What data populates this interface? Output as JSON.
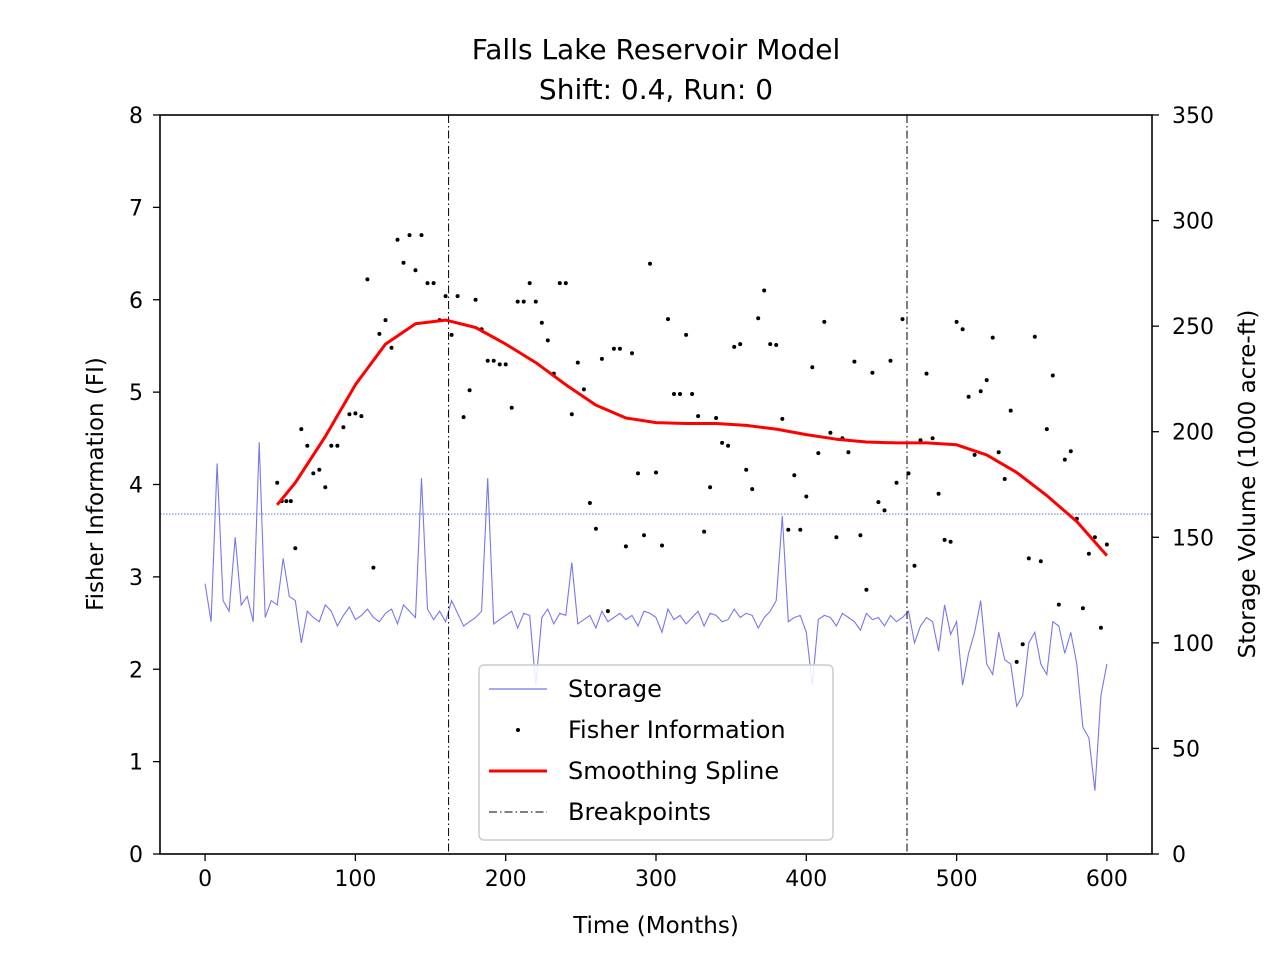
{
  "chart_data": {
    "type": "line",
    "title": "Falls Lake Reservoir Model",
    "subtitle": "Shift: 0.4, Run: 0",
    "xlabel": "Time (Months)",
    "ylabel": "Fisher Information (FI)",
    "y2label": "Storage Volume (1000 acre-ft)",
    "xlim": [
      -30,
      630
    ],
    "ylim": [
      0,
      8
    ],
    "y2lim": [
      0,
      350
    ],
    "xticks": [
      0,
      100,
      200,
      300,
      400,
      500,
      600
    ],
    "yticks": [
      0,
      1,
      2,
      3,
      4,
      5,
      6,
      7,
      8
    ],
    "y2ticks": [
      0,
      50,
      100,
      150,
      200,
      250,
      300,
      350
    ],
    "grid": false,
    "legend_position": "bottom-center",
    "breakpoints": [
      162,
      467
    ],
    "reference_line_y2": 161,
    "colors": {
      "storage": "#7777ee",
      "fisher": "#000000",
      "spline": "#ff0000",
      "breakpoints": "#000000",
      "reference": "#4466bb"
    },
    "series": [
      {
        "name": "Storage",
        "axis": "right",
        "style": "thin-line",
        "x": [
          0,
          4,
          8,
          12,
          16,
          20,
          24,
          28,
          32,
          36,
          40,
          44,
          48,
          52,
          56,
          60,
          64,
          68,
          72,
          76,
          80,
          84,
          88,
          92,
          96,
          100,
          104,
          108,
          112,
          116,
          120,
          124,
          128,
          132,
          136,
          140,
          144,
          148,
          152,
          156,
          160,
          164,
          168,
          172,
          176,
          180,
          184,
          188,
          192,
          196,
          200,
          204,
          208,
          212,
          216,
          220,
          224,
          228,
          232,
          236,
          240,
          244,
          248,
          252,
          256,
          260,
          264,
          268,
          272,
          276,
          280,
          284,
          288,
          292,
          296,
          300,
          304,
          308,
          312,
          316,
          320,
          324,
          328,
          332,
          336,
          340,
          344,
          348,
          352,
          356,
          360,
          364,
          368,
          372,
          376,
          380,
          384,
          388,
          392,
          396,
          400,
          404,
          408,
          412,
          416,
          420,
          424,
          428,
          432,
          436,
          440,
          444,
          448,
          452,
          456,
          460,
          464,
          468,
          472,
          476,
          480,
          484,
          488,
          492,
          496,
          500,
          504,
          508,
          512,
          516,
          520,
          524,
          528,
          532,
          536,
          540,
          544,
          548,
          552,
          556,
          560,
          564,
          568,
          572,
          576,
          580,
          584,
          588,
          592,
          596,
          600
        ],
        "values": [
          128,
          110,
          185,
          120,
          115,
          150,
          118,
          122,
          110,
          195,
          112,
          120,
          118,
          140,
          122,
          120,
          100,
          115,
          112,
          110,
          118,
          115,
          108,
          113,
          117,
          111,
          113,
          116,
          112,
          110,
          114,
          116,
          109,
          118,
          115,
          112,
          178,
          116,
          111,
          115,
          110,
          120,
          114,
          108,
          110,
          112,
          115,
          178,
          109,
          111,
          113,
          115,
          107,
          114,
          113,
          80,
          112,
          116,
          109,
          114,
          113,
          138,
          109,
          111,
          113,
          107,
          115,
          110,
          112,
          114,
          111,
          113,
          108,
          115,
          114,
          112,
          105,
          116,
          111,
          113,
          109,
          112,
          115,
          108,
          114,
          113,
          110,
          111,
          116,
          112,
          114,
          113,
          107,
          112,
          115,
          120,
          160,
          110,
          112,
          113,
          105,
          80,
          111,
          113,
          112,
          108,
          114,
          112,
          110,
          106,
          114,
          111,
          112,
          108,
          113,
          110,
          112,
          115,
          100,
          108,
          112,
          110,
          96,
          118,
          104,
          110,
          80,
          95,
          105,
          120,
          90,
          85,
          105,
          92,
          90,
          70,
          75,
          100,
          105,
          90,
          85,
          110,
          108,
          95,
          105,
          90,
          60,
          55,
          30,
          75,
          90
        ]
      },
      {
        "name": "Fisher Information",
        "axis": "left",
        "style": "points",
        "x": [
          48,
          51,
          54,
          57,
          60,
          64,
          68,
          72,
          76,
          80,
          84,
          88,
          92,
          96,
          100,
          104,
          108,
          112,
          116,
          120,
          124,
          128,
          132,
          136,
          140,
          144,
          148,
          152,
          156,
          160,
          164,
          168,
          172,
          176,
          180,
          184,
          188,
          192,
          196,
          200,
          204,
          208,
          212,
          216,
          220,
          224,
          228,
          232,
          236,
          240,
          244,
          248,
          252,
          256,
          260,
          264,
          268,
          272,
          276,
          280,
          284,
          288,
          292,
          296,
          300,
          304,
          308,
          312,
          316,
          320,
          324,
          328,
          332,
          336,
          340,
          344,
          348,
          352,
          356,
          360,
          364,
          368,
          372,
          376,
          380,
          384,
          388,
          392,
          396,
          400,
          404,
          408,
          412,
          416,
          420,
          424,
          428,
          432,
          436,
          440,
          444,
          448,
          452,
          456,
          460,
          464,
          468,
          472,
          476,
          480,
          484,
          488,
          492,
          496,
          500,
          504,
          508,
          512,
          516,
          520,
          524,
          528,
          532,
          536,
          540,
          544,
          548,
          552,
          556,
          560,
          564,
          568,
          572,
          576,
          580,
          584,
          588,
          592,
          596,
          600
        ],
        "values": [
          4.02,
          3.82,
          3.82,
          3.82,
          3.31,
          4.6,
          4.42,
          4.12,
          4.16,
          3.97,
          4.42,
          4.42,
          4.62,
          4.76,
          4.77,
          4.74,
          6.22,
          3.1,
          5.63,
          5.78,
          5.48,
          6.65,
          6.4,
          6.7,
          6.32,
          6.7,
          6.18,
          6.18,
          5.78,
          6.04,
          5.62,
          6.04,
          4.73,
          5.02,
          6.0,
          5.68,
          5.34,
          5.34,
          5.3,
          5.3,
          4.83,
          5.98,
          5.98,
          6.18,
          5.98,
          5.75,
          5.56,
          5.2,
          6.18,
          6.18,
          4.76,
          5.32,
          5.03,
          3.8,
          3.52,
          5.36,
          2.63,
          5.47,
          5.47,
          3.33,
          5.42,
          4.12,
          3.45,
          6.39,
          4.13,
          3.34,
          5.79,
          4.98,
          4.98,
          5.62,
          4.98,
          4.74,
          3.49,
          3.97,
          4.72,
          4.45,
          4.42,
          5.49,
          5.52,
          4.16,
          3.95,
          5.8,
          6.1,
          5.52,
          5.51,
          4.71,
          3.51,
          4.1,
          3.51,
          3.87,
          5.27,
          4.34,
          5.76,
          4.56,
          3.43,
          4.5,
          4.35,
          5.33,
          3.45,
          2.86,
          5.21,
          3.81,
          3.72,
          5.34,
          4.02,
          5.79,
          4.12,
          3.12,
          4.48,
          5.2,
          4.5,
          3.9,
          3.4,
          3.38,
          5.76,
          5.68,
          4.95,
          4.32,
          5.01,
          5.13,
          5.59,
          4.35,
          4.06,
          4.8,
          2.08,
          2.27,
          3.2,
          5.6,
          3.17,
          4.6,
          5.18,
          2.7,
          4.27,
          4.36,
          3.63,
          2.66,
          3.25,
          3.43,
          2.45,
          3.35
        ]
      },
      {
        "name": "Smoothing Spline",
        "axis": "left",
        "style": "thick-line",
        "x": [
          48,
          60,
          80,
          100,
          120,
          140,
          160,
          180,
          200,
          220,
          240,
          260,
          280,
          300,
          320,
          340,
          360,
          380,
          400,
          420,
          440,
          460,
          480,
          500,
          520,
          540,
          560,
          580,
          600
        ],
        "values": [
          3.78,
          4.02,
          4.52,
          5.08,
          5.52,
          5.74,
          5.78,
          5.7,
          5.52,
          5.32,
          5.08,
          4.86,
          4.72,
          4.67,
          4.66,
          4.66,
          4.64,
          4.6,
          4.54,
          4.49,
          4.46,
          4.45,
          4.45,
          4.43,
          4.32,
          4.13,
          3.88,
          3.6,
          3.23
        ]
      },
      {
        "name": "Breakpoints",
        "axis": "left",
        "style": "dash-dot-vertical"
      }
    ]
  }
}
